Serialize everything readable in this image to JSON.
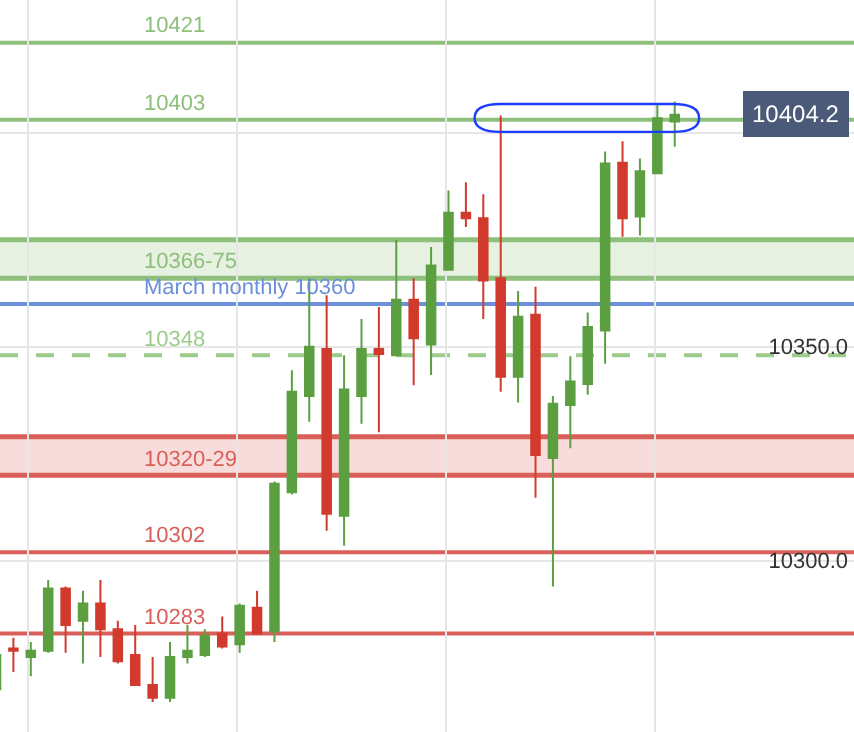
{
  "chart_data": {
    "type": "candlestick",
    "categories": [
      null,
      null,
      null,
      null,
      null,
      null,
      null,
      null,
      null,
      null,
      null,
      null,
      null,
      null,
      null,
      null,
      null,
      null,
      null,
      null,
      null,
      null,
      null,
      null,
      null,
      null,
      null,
      null,
      null,
      null,
      null,
      null,
      null,
      null,
      null,
      null,
      null,
      null,
      null,
      null
    ],
    "ohlc": [
      [
        10270,
        10279,
        10270,
        10278
      ],
      [
        10279.5,
        10282,
        10274,
        10279
      ],
      [
        10277.5,
        10281,
        10273,
        10279
      ],
      [
        10279,
        10295.5,
        10278.5,
        10293.5
      ],
      [
        10293.5,
        10294,
        10278.5,
        10285
      ],
      [
        10286,
        10293,
        10276,
        10290
      ],
      [
        10290,
        10295.5,
        10277.5,
        10284
      ],
      [
        10284,
        10286,
        10276,
        10276.5
      ],
      [
        10278,
        10285,
        10271,
        10271
      ],
      [
        10271,
        10277.5,
        10267,
        10268
      ],
      [
        10268,
        10281,
        10267,
        10277.5
      ],
      [
        10277.5,
        10285,
        10276,
        10279
      ],
      [
        10278,
        10284,
        10277.5,
        10282.5
      ],
      [
        10283,
        10287,
        10279.5,
        10280
      ],
      [
        10280.5,
        10290,
        10278.5,
        10289.5
      ],
      [
        10289,
        10293,
        10283,
        10283
      ],
      [
        10283.5,
        10318.5,
        10281,
        10318
      ],
      [
        10316,
        10344.5,
        10315.5,
        10339.5
      ],
      [
        10338.5,
        10366,
        10332.5,
        10350
      ],
      [
        10349.5,
        10362,
        10307,
        10311
      ],
      [
        10310.5,
        10348,
        10303.5,
        10340
      ],
      [
        10338.5,
        10356.5,
        10332,
        10349.5
      ],
      [
        10349.5,
        10359.3,
        10330,
        10348.3
      ],
      [
        10348,
        10375,
        10348,
        10361
      ],
      [
        10361,
        10366,
        10341,
        10352
      ],
      [
        10350.5,
        10373.3,
        10343.4,
        10369
      ],
      [
        10368,
        10386.5,
        10368,
        10381.3
      ],
      [
        10381.3,
        10388.4,
        10378,
        10380
      ],
      [
        10380,
        10385.6,
        10356.5,
        10365.5
      ],
      [
        10366,
        10404,
        10339.5,
        10343
      ],
      [
        10343,
        10363,
        10337,
        10357
      ],
      [
        10357.5,
        10364,
        10314.7,
        10324.7
      ],
      [
        10324,
        10338.5,
        10294,
        10336.7
      ],
      [
        10336.4,
        10347.8,
        10326.3,
        10341.9
      ],
      [
        10341.3,
        10358,
        10338.8,
        10354.6
      ],
      [
        10353.8,
        10395.6,
        10346,
        10392.8
      ],
      [
        10393,
        10398,
        10375.7,
        10380
      ],
      [
        10380.4,
        10394,
        10376,
        10391
      ],
      [
        10390.5,
        10406.5,
        10390.4,
        10403.4
      ],
      [
        10402.6,
        10407.3,
        10396.7,
        10404.2
      ]
    ],
    "colors": [
      "#5b9f41",
      "#d13a2c",
      "#5b9f41",
      "#5b9f41",
      "#d13a2c",
      "#5b9f41",
      "#d13a2c",
      "#d13a2c",
      "#d13a2c",
      "#d13a2c",
      "#5b9f41",
      "#5b9f41",
      "#5b9f41",
      "#d13a2c",
      "#5b9f41",
      "#d13a2c",
      "#5b9f41",
      "#5b9f41",
      "#5b9f41",
      "#d13a2c",
      "#5b9f41",
      "#5b9f41",
      "#d13a2c",
      "#5b9f41",
      "#d13a2c",
      "#5b9f41",
      "#5b9f41",
      "#d13a2c",
      "#d13a2c",
      "#d13a2c",
      "#5b9f41",
      "#d13a2c",
      "#5b9f41",
      "#5b9f41",
      "#5b9f41",
      "#5b9f41",
      "#d13a2c",
      "#5b9f41",
      "#5b9f41",
      "#5b9f41"
    ],
    "ylim": [
      10260,
      10431
    ],
    "yticks": [
      {
        "value": 10300,
        "label": "10300.0"
      },
      {
        "value": 10350,
        "label": "10350.0"
      },
      {
        "value": 10400,
        "label": null
      }
    ],
    "grid": true,
    "ref_lines": [
      {
        "axis": "y",
        "value": 10421,
        "label": "10421",
        "color": "#8dc07b"
      },
      {
        "axis": "y",
        "value": 10403,
        "label": "10403",
        "color": "#8dc07b"
      },
      {
        "axis": "y",
        "value": 10360,
        "label": "March monthly 10360",
        "color": "#6b8fd8"
      },
      {
        "axis": "y",
        "value": 10348,
        "label": "10348",
        "color": "#9ccb8b",
        "line_style": "dashed"
      },
      {
        "axis": "y",
        "value": 10302,
        "label": "10302",
        "color": "#d9605a"
      },
      {
        "axis": "y",
        "value": 10283,
        "label": "10283",
        "color": "#d9605a"
      }
    ],
    "bands": [
      {
        "axis": "y",
        "from": 10366,
        "to": 10375,
        "label": "10366-75",
        "color": "#8dc07b"
      },
      {
        "axis": "y",
        "from": 10320,
        "to": 10329,
        "label": "10320-29",
        "color": "#d9605a"
      }
    ],
    "annotations": [
      {
        "text": "10404.2",
        "y": 10404.2
      }
    ]
  }
}
